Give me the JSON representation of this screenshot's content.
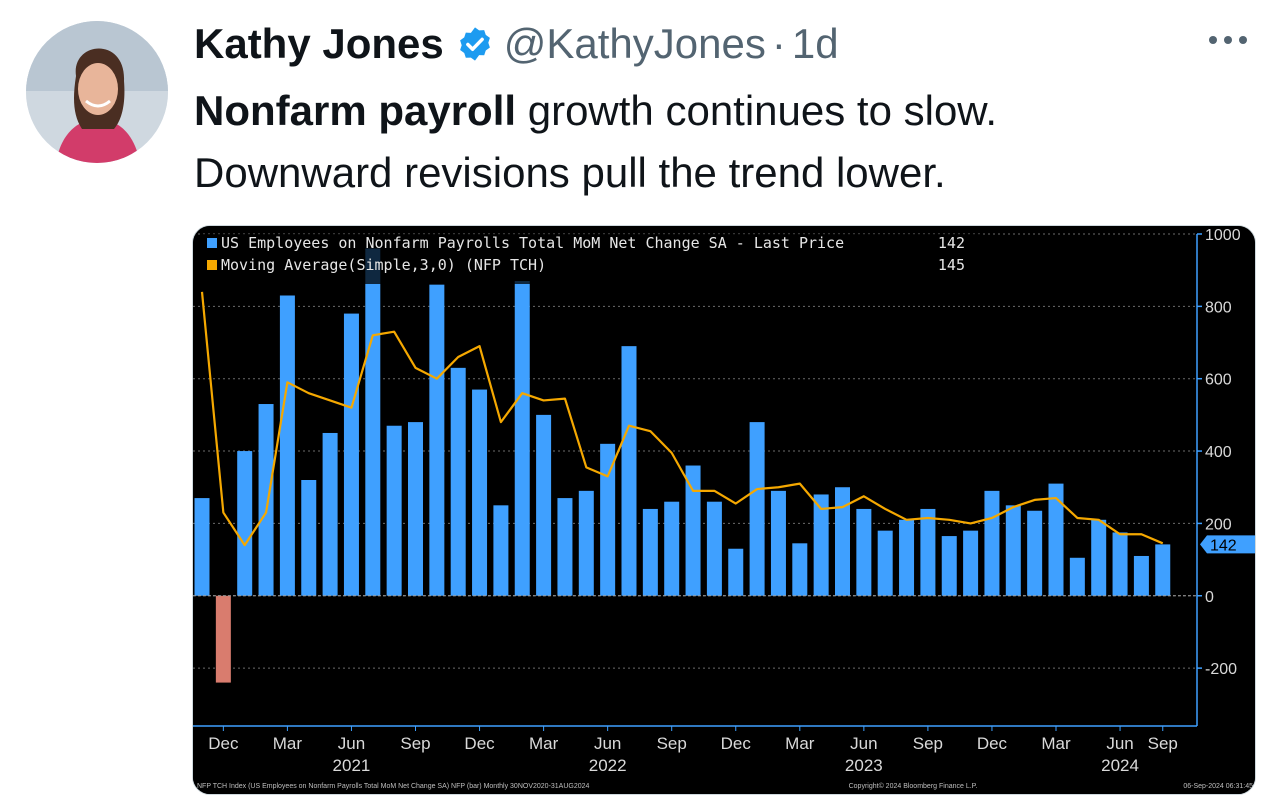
{
  "author": {
    "name": "Kathy Jones",
    "handle": "@KathyJones",
    "separator": "·",
    "age": "1d",
    "verified_icon": "verified-badge-icon",
    "badge_color": "#1d9bf0"
  },
  "tweet": {
    "text_bold": "Nonfarm payroll",
    "text_rest": " growth continues to slow.",
    "text_line2": "Downward revisions pull the trend lower."
  },
  "more_icon": "more-horizontal-icon",
  "chart_data": {
    "type": "bar",
    "legend": [
      {
        "label": "US Employees on Nonfarm Payrolls Total MoM Net Change SA - Last Price",
        "value": "142",
        "color": "#3fa0ff"
      },
      {
        "label": "Moving Average(Simple,3,0) (NFP TCH)",
        "value": "145",
        "color": "#f5a800"
      }
    ],
    "x": [
      "2020-11",
      "2020-12",
      "2021-01",
      "2021-02",
      "2021-03",
      "2021-04",
      "2021-05",
      "2021-06",
      "2021-07",
      "2021-08",
      "2021-09",
      "2021-10",
      "2021-11",
      "2021-12",
      "2022-01",
      "2022-02",
      "2022-03",
      "2022-04",
      "2022-05",
      "2022-06",
      "2022-07",
      "2022-08",
      "2022-09",
      "2022-10",
      "2022-11",
      "2022-12",
      "2023-01",
      "2023-02",
      "2023-03",
      "2023-04",
      "2023-05",
      "2023-06",
      "2023-07",
      "2023-08",
      "2023-09",
      "2023-10",
      "2023-11",
      "2023-12",
      "2024-01",
      "2024-02",
      "2024-03",
      "2024-04",
      "2024-05",
      "2024-06",
      "2024-07",
      "2024-08"
    ],
    "series": [
      {
        "name": "US Employees on Nonfarm Payrolls Total MoM Net Change SA",
        "type": "bar",
        "values": [
          270,
          -240,
          400,
          530,
          830,
          320,
          450,
          780,
          960,
          470,
          480,
          860,
          630,
          570,
          250,
          870,
          500,
          270,
          290,
          420,
          690,
          240,
          260,
          360,
          260,
          130,
          480,
          290,
          145,
          280,
          300,
          240,
          180,
          210,
          240,
          165,
          180,
          290,
          250,
          235,
          310,
          105,
          210,
          175,
          110,
          142
        ],
        "color": "#3fa0ff",
        "negative_color": "#d97c6e"
      },
      {
        "name": "Moving Average(Simple,3,0) (NFP TCH)",
        "type": "line",
        "values": [
          840,
          230,
          140,
          230,
          590,
          560,
          540,
          520,
          720,
          730,
          630,
          600,
          660,
          690,
          480,
          560,
          540,
          545,
          355,
          330,
          470,
          455,
          395,
          290,
          290,
          255,
          295,
          300,
          310,
          240,
          245,
          275,
          240,
          210,
          215,
          210,
          200,
          215,
          245,
          265,
          270,
          215,
          210,
          170,
          170,
          145
        ],
        "color": "#f5a800"
      }
    ],
    "ylim": [
      -360,
      1000
    ],
    "yticks": [
      -200,
      0,
      200,
      400,
      600,
      800,
      1000
    ],
    "ytick_labels": [
      "-200",
      "0",
      "200",
      "400",
      "600",
      "800",
      "1000"
    ],
    "xtick_labels": [
      {
        "month": "2020-12",
        "label": "Dec"
      },
      {
        "month": "2021-03",
        "label": "Mar"
      },
      {
        "month": "2021-06",
        "label": "Jun"
      },
      {
        "month": "2021-09",
        "label": "Sep"
      },
      {
        "month": "2021-12",
        "label": "Dec"
      },
      {
        "month": "2022-03",
        "label": "Mar"
      },
      {
        "month": "2022-06",
        "label": "Jun"
      },
      {
        "month": "2022-09",
        "label": "Sep"
      },
      {
        "month": "2022-12",
        "label": "Dec"
      },
      {
        "month": "2023-03",
        "label": "Mar"
      },
      {
        "month": "2023-06",
        "label": "Jun"
      },
      {
        "month": "2023-09",
        "label": "Sep"
      },
      {
        "month": "2023-12",
        "label": "Dec"
      },
      {
        "month": "2024-03",
        "label": "Mar"
      },
      {
        "month": "2024-06",
        "label": "Jun"
      },
      {
        "month": "2024-08",
        "label": "Sep"
      }
    ],
    "year_labels": [
      {
        "month": "2021-06",
        "label": "2021"
      },
      {
        "month": "2022-06",
        "label": "2022"
      },
      {
        "month": "2023-06",
        "label": "2023"
      },
      {
        "month": "2024-06",
        "label": "2024"
      }
    ],
    "last_value_tag": "142",
    "grid": true,
    "background": "#000000",
    "footer_left": "NFP TCH Index (US Employees on Nonfarm Payrolls Total MoM Net Change SA) NFP (bar)  Monthly 30NOV2020-31AUG2024",
    "footer_center": "Copyright© 2024 Bloomberg Finance L.P.",
    "footer_right": "06-Sep-2024 06:31:45"
  }
}
